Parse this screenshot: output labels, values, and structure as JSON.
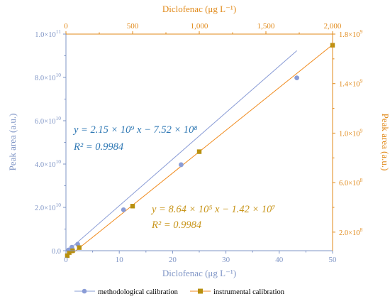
{
  "colors": {
    "blue_series": "#8a9cd6",
    "blue_axis": "#7f95c6",
    "blue_equation": "#2f78b4",
    "orange_series": "#f08a1c",
    "orange_marker": "#b8900f",
    "orange_axis": "#e18a1a",
    "gold_equation": "#c8951a"
  },
  "chart_data": {
    "type": "scatter",
    "x_bottom": {
      "label": "Diclofenac (μg L⁻¹)",
      "range": [
        0,
        50
      ],
      "ticks": [
        0,
        10,
        20,
        30,
        40,
        50
      ],
      "tick_labels": [
        "0",
        "10",
        "20",
        "30",
        "40",
        "50"
      ]
    },
    "x_top": {
      "label": "Diclofenac (μg L⁻¹)",
      "range": [
        0,
        2000
      ],
      "ticks": [
        0,
        500,
        1000,
        1500,
        2000
      ],
      "tick_labels": [
        "0",
        "500",
        "1,000",
        "1,500",
        "2,000"
      ]
    },
    "y_left": {
      "label": "Peak area (a.u.)",
      "range": [
        0,
        100000000000.0
      ],
      "ticks": [
        0,
        20000000000.0,
        40000000000.0,
        60000000000.0,
        80000000000.0,
        100000000000.0
      ],
      "tick_labels": [
        {
          "mant": "0.0",
          "exp": ""
        },
        {
          "mant": "2.0×10",
          "exp": "10"
        },
        {
          "mant": "4.0×10",
          "exp": "10"
        },
        {
          "mant": "6.0×10",
          "exp": "10"
        },
        {
          "mant": "8.0×10",
          "exp": "10"
        },
        {
          "mant": "1.0×10",
          "exp": "11"
        }
      ]
    },
    "y_right": {
      "label": "Peak area (a.u.)",
      "range": [
        50000000.0,
        1800000000.0
      ],
      "ticks": [
        200000000.0,
        600000000.0,
        1000000000.0,
        1400000000.0,
        1800000000.0
      ],
      "minor_ticks": [
        400000000.0,
        800000000.0,
        1200000000.0,
        1600000000.0
      ],
      "tick_labels": [
        {
          "mant": "2.0×10",
          "exp": "8"
        },
        {
          "mant": "6.0×10",
          "exp": "8"
        },
        {
          "mant": "1.0×10",
          "exp": "9"
        },
        {
          "mant": "1.4×10",
          "exp": "9"
        },
        {
          "mant": "1.8×10",
          "exp": "9"
        }
      ]
    },
    "series": [
      {
        "name": "methodological calibration",
        "axes": "bottom-left",
        "marker": "circle",
        "x": [
          0.5,
          1.1,
          2.2,
          10.8,
          21.6,
          43.3
        ],
        "y": [
          300000000.0,
          1600000000.0,
          3000000000.0,
          18900000000.0,
          39700000000.0,
          79800000000.0
        ],
        "fit": {
          "slope": 2150000000.0,
          "intercept": -752000000.0,
          "x": [
            0.5,
            43.3
          ]
        }
      },
      {
        "name": "instrumental calibration",
        "axes": "top-right",
        "marker": "square",
        "x": [
          10,
          25,
          50,
          100,
          500,
          1000,
          2000
        ],
        "y": [
          10000000.0,
          35000000.0,
          50000000.0,
          75000000.0,
          410000000.0,
          850000000.0,
          1710000000.0
        ],
        "fit": {
          "slope": 864000.0,
          "intercept": -14200000.0,
          "x": [
            50,
            2000
          ]
        }
      }
    ],
    "annotations": {
      "blue_eq_line1": "y = 2.15 × 10⁹ x − 7.52 × 10⁸",
      "blue_eq_line2": "R² = 0.9984",
      "gold_eq_line1": "y = 8.64 × 10⁵ x − 1.42 × 10⁷",
      "gold_eq_line2": "R² = 0.9984"
    },
    "legend": {
      "position": "bottom",
      "items": [
        "methodological calibration",
        "instrumental calibration"
      ]
    },
    "grid": false
  }
}
